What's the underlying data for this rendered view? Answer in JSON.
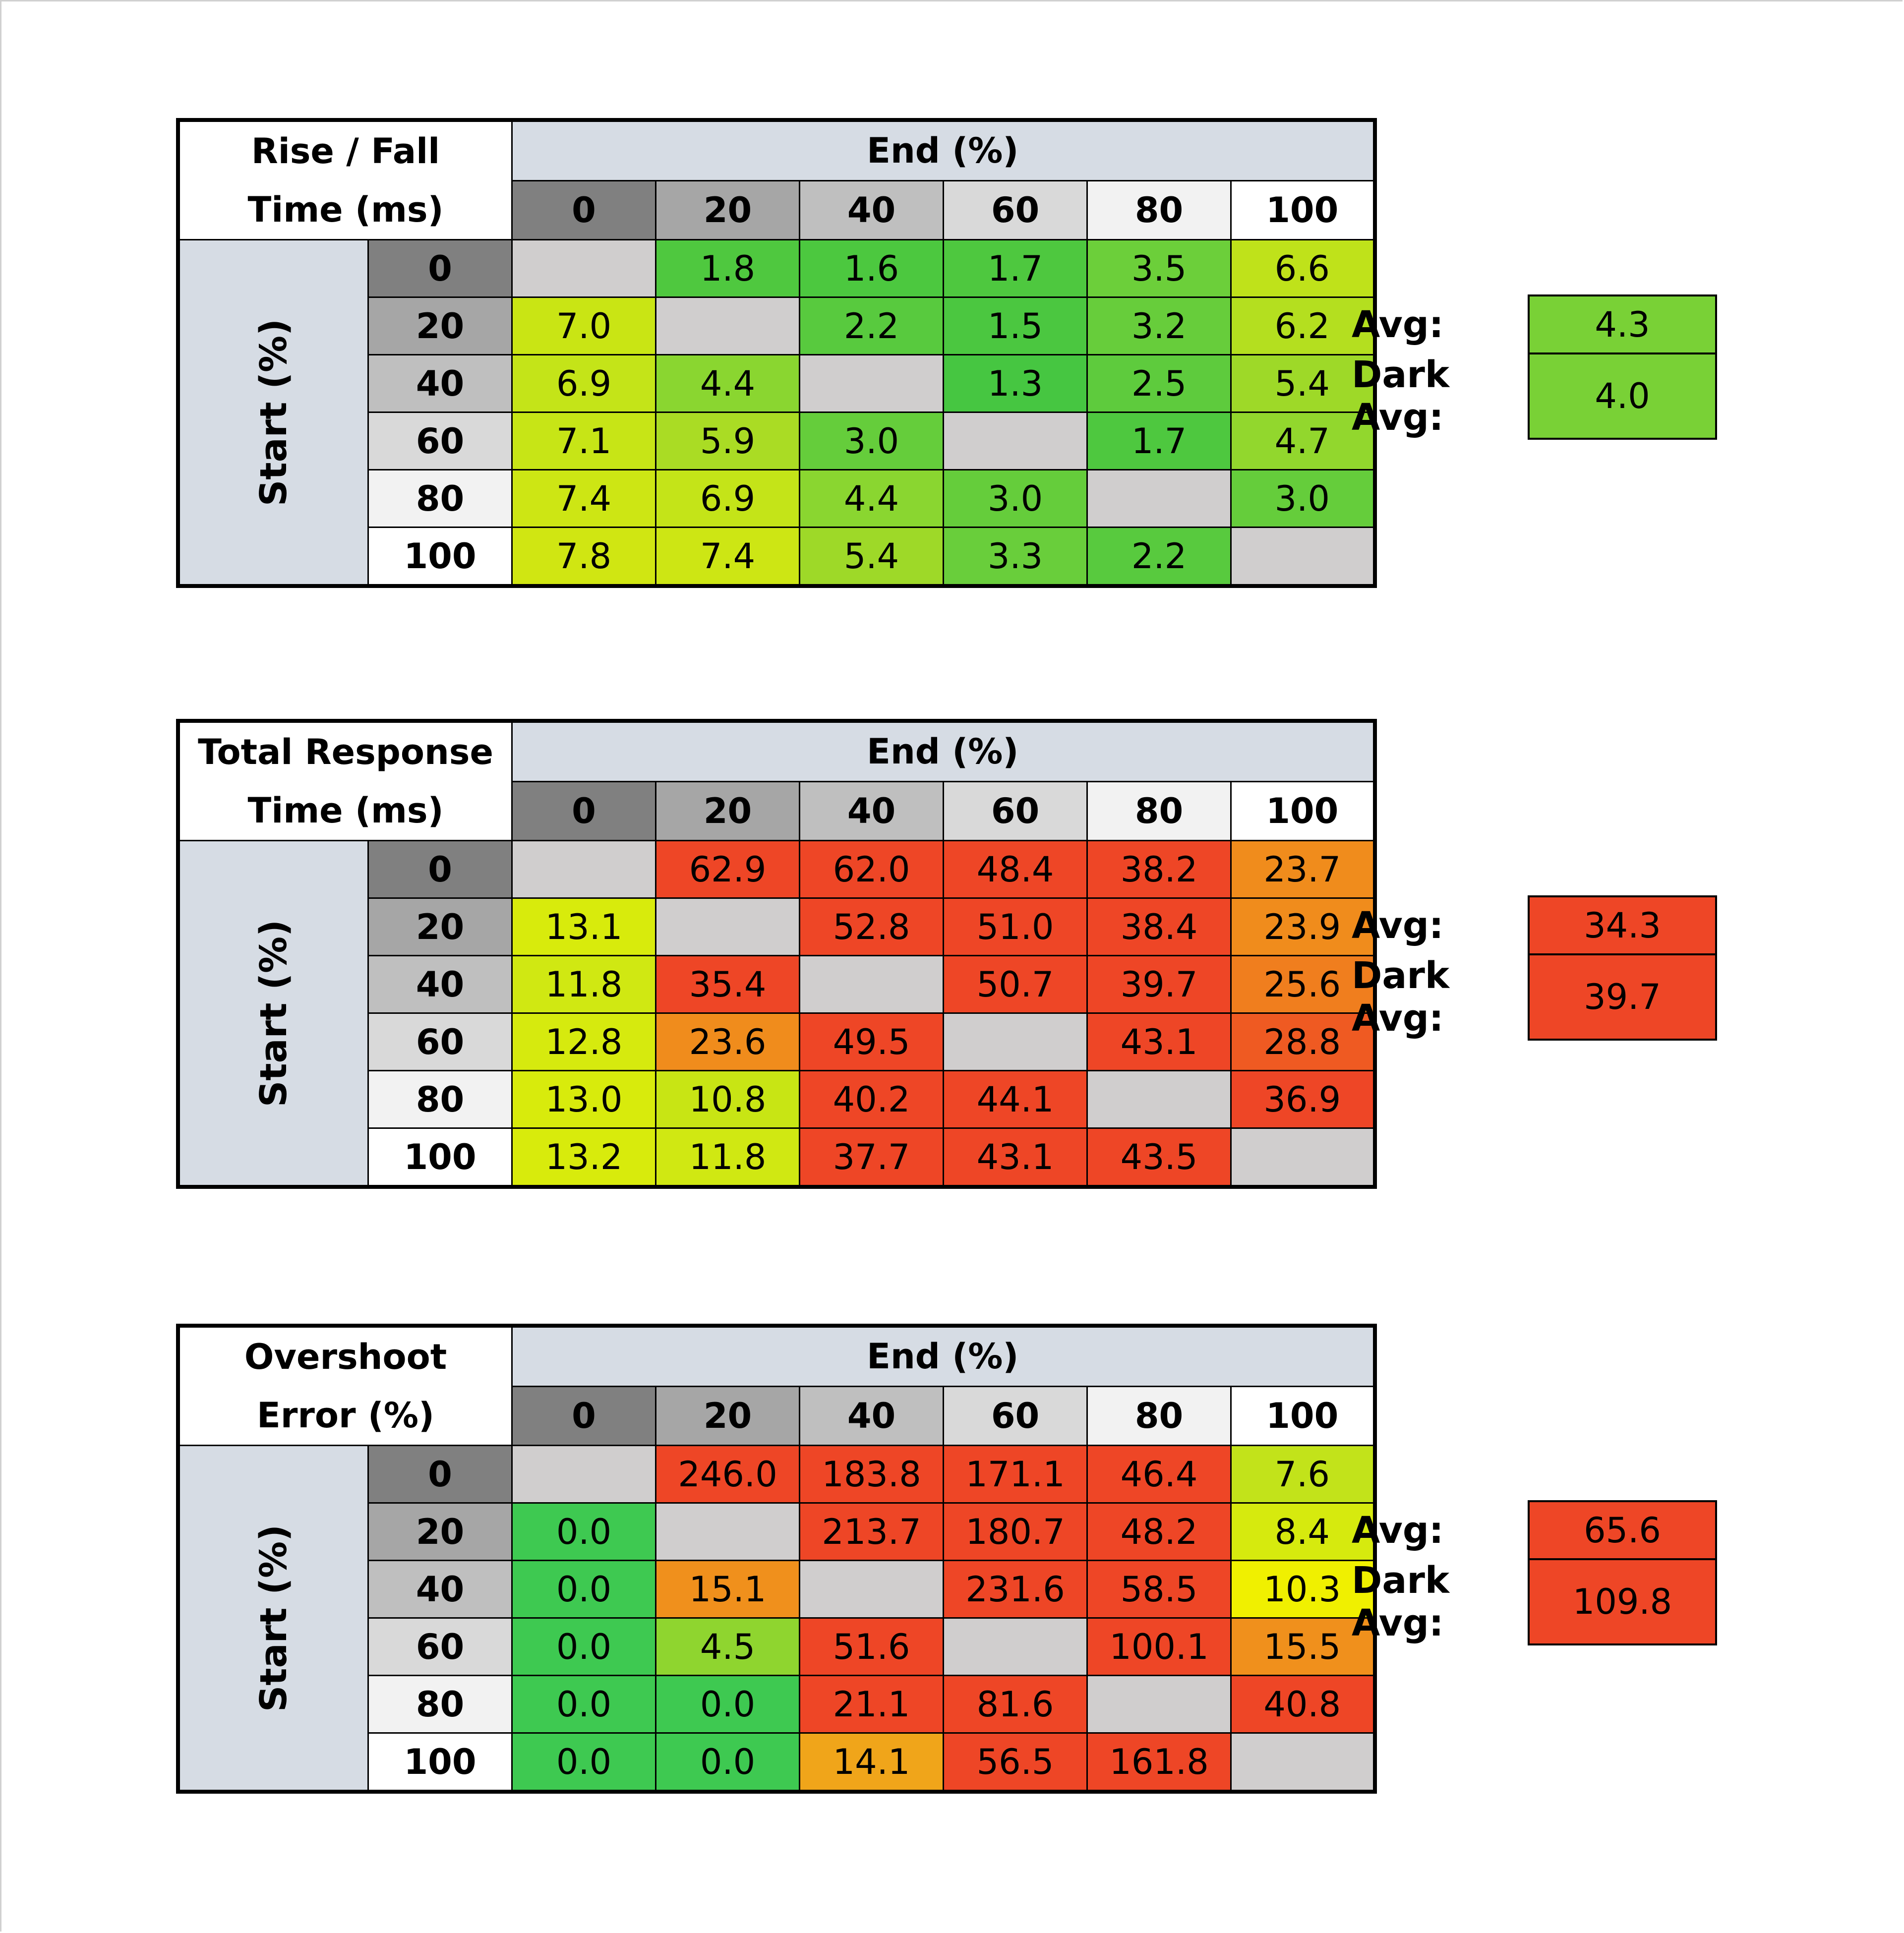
{
  "chart_data": [
    {
      "type": "heatmap",
      "title": "Rise / Fall Time (ms)",
      "title_lines": [
        "Rise / Fall",
        "Time (ms)"
      ],
      "xlabel": "End (%)",
      "ylabel": "Start (%)",
      "x": [
        "0",
        "20",
        "40",
        "60",
        "80",
        "100"
      ],
      "y": [
        "0",
        "20",
        "40",
        "60",
        "80",
        "100"
      ],
      "values": [
        [
          null,
          "1.8",
          "1.6",
          "1.7",
          "3.5",
          "6.6"
        ],
        [
          "7.0",
          null,
          "2.2",
          "1.5",
          "3.2",
          "6.2"
        ],
        [
          "6.9",
          "4.4",
          null,
          "1.3",
          "2.5",
          "5.4"
        ],
        [
          "7.1",
          "5.9",
          "3.0",
          null,
          "1.7",
          "4.7"
        ],
        [
          "7.4",
          "6.9",
          "4.4",
          "3.0",
          null,
          "3.0"
        ],
        [
          "7.8",
          "7.4",
          "5.4",
          "3.3",
          "2.2",
          null
        ]
      ],
      "colors": [
        [
          "#d0cece",
          "#4fc83f",
          "#4cc83f",
          "#4ec83f",
          "#6ccf3a",
          "#bfe21a"
        ],
        [
          "#c9e514",
          null,
          "#58ca3e",
          "#4bc740",
          "#67cd3b",
          "#b4df1f"
        ],
        [
          "#c4e418",
          "#8ad630",
          null,
          "#46c641",
          "#5ecb3d",
          "#9ed928"
        ],
        [
          "#c7e516",
          "#aadc24",
          "#65cd3b",
          null,
          "#4ec83f",
          "#92d72d"
        ],
        [
          "#cde614",
          "#c4e418",
          "#8ad630",
          "#65cd3b",
          null,
          "#65cd3b"
        ],
        [
          "#d0e612",
          "#cde614",
          "#9ed928",
          "#69ce3b",
          "#58ca3e",
          null
        ]
      ],
      "avg_label": "Avg:",
      "avg": "4.3",
      "avg_color": "#79d136",
      "dark_avg_label": "Dark Avg:",
      "dark_avg": "4.0",
      "dark_avg_color": "#79d136"
    },
    {
      "type": "heatmap",
      "title": "Total Response Time (ms)",
      "title_lines": [
        "Total Response",
        "Time (ms)"
      ],
      "xlabel": "End (%)",
      "ylabel": "Start (%)",
      "x": [
        "0",
        "20",
        "40",
        "60",
        "80",
        "100"
      ],
      "y": [
        "0",
        "20",
        "40",
        "60",
        "80",
        "100"
      ],
      "values": [
        [
          null,
          "62.9",
          "62.0",
          "48.4",
          "38.2",
          "23.7"
        ],
        [
          "13.1",
          null,
          "52.8",
          "51.0",
          "38.4",
          "23.9"
        ],
        [
          "11.8",
          "35.4",
          null,
          "50.7",
          "39.7",
          "25.6"
        ],
        [
          "12.8",
          "23.6",
          "49.5",
          null,
          "43.1",
          "28.8"
        ],
        [
          "13.0",
          "10.8",
          "40.2",
          "44.1",
          null,
          "36.9"
        ],
        [
          "13.2",
          "11.8",
          "37.7",
          "43.1",
          "43.5",
          null
        ]
      ],
      "colors": [
        [
          "#d0cece",
          "#ee4626",
          "#ee4626",
          "#ee4626",
          "#ee4626",
          "#f08c1c"
        ],
        [
          "#d8eb0c",
          null,
          "#ee4626",
          "#ee4626",
          "#ee4626",
          "#f08c1c"
        ],
        [
          "#d0e812",
          "#ee4626",
          null,
          "#ee4626",
          "#ee4626",
          "#f07e1e"
        ],
        [
          "#d6ea0e",
          "#f08c1c",
          "#ee4626",
          null,
          "#ee4626",
          "#ef5a22"
        ],
        [
          "#d8eb0c",
          "#c8e514",
          "#ee4626",
          "#ee4626",
          null,
          "#ee4626"
        ],
        [
          "#d8eb0c",
          "#d0e812",
          "#ee4626",
          "#ee4626",
          "#ee4626",
          null
        ]
      ],
      "avg_label": "Avg:",
      "avg": "34.3",
      "avg_color": "#ee4626",
      "dark_avg_label": "Dark Avg:",
      "dark_avg": "39.7",
      "dark_avg_color": "#ee4626"
    },
    {
      "type": "heatmap",
      "title": "Overshoot Error (%)",
      "title_lines": [
        "Overshoot",
        "Error (%)"
      ],
      "xlabel": "End (%)",
      "ylabel": "Start (%)",
      "x": [
        "0",
        "20",
        "40",
        "60",
        "80",
        "100"
      ],
      "y": [
        "0",
        "20",
        "40",
        "60",
        "80",
        "100"
      ],
      "values": [
        [
          null,
          "246.0",
          "183.8",
          "171.1",
          "46.4",
          "7.6"
        ],
        [
          "0.0",
          null,
          "213.7",
          "180.7",
          "48.2",
          "8.4"
        ],
        [
          "0.0",
          "15.1",
          null,
          "231.6",
          "58.5",
          "10.3"
        ],
        [
          "0.0",
          "4.5",
          "51.6",
          null,
          "100.1",
          "15.5"
        ],
        [
          "0.0",
          "0.0",
          "21.1",
          "81.6",
          null,
          "40.8"
        ],
        [
          "0.0",
          "0.0",
          "14.1",
          "56.5",
          "161.8",
          null
        ]
      ],
      "colors": [
        [
          "#d0cece",
          "#ee4626",
          "#ee4626",
          "#ee4626",
          "#ee4626",
          "#c2e31a"
        ],
        [
          "#3ec951",
          null,
          "#ee4626",
          "#ee4626",
          "#ee4626",
          "#d6ea0e"
        ],
        [
          "#3ec951",
          "#f0901c",
          null,
          "#ee4626",
          "#ee4626",
          "#f0f000"
        ],
        [
          "#3ec951",
          "#8fd52f",
          "#ee4626",
          null,
          "#ee4626",
          "#f0901c"
        ],
        [
          "#3ec951",
          "#3ec951",
          "#ee4626",
          "#ee4626",
          null,
          "#ee4626"
        ],
        [
          "#3ec951",
          "#3ec951",
          "#f0a51a",
          "#ee4626",
          "#ee4626",
          null
        ]
      ],
      "avg_label": "Avg:",
      "avg": "65.6",
      "avg_color": "#ee4626",
      "dark_avg_label": "Dark Avg:",
      "dark_avg": "109.8",
      "dark_avg_color": "#ee4626"
    }
  ]
}
